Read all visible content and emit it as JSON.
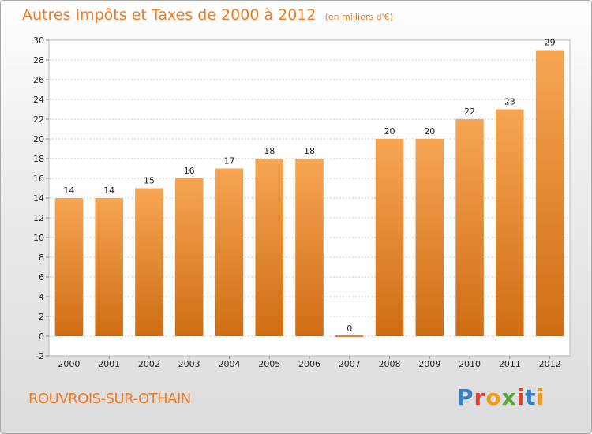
{
  "title": {
    "main": "Autres Impôts et Taxes de 2000 à 2012",
    "unit": "(en milliers d'€)"
  },
  "commune": "ROUVROIS-SUR-OTHAIN",
  "logo": {
    "text": "Proxiti",
    "letter_colors": [
      "#3b7fc4",
      "#e63c2f",
      "#f29a1d",
      "#5aa83a",
      "#e63c2f",
      "#3b7fc4",
      "#f29a1d"
    ]
  },
  "colors": {
    "bar_light": "#f7a553",
    "bar_dark": "#cf6d14",
    "accent": "#ef7b24",
    "grid": "#cccccc"
  },
  "chart_data": {
    "type": "bar",
    "categories": [
      "2000",
      "2001",
      "2002",
      "2003",
      "2004",
      "2005",
      "2006",
      "2007",
      "2008",
      "2009",
      "2010",
      "2011",
      "2012"
    ],
    "values": [
      14,
      14,
      15,
      16,
      17,
      18,
      18,
      0,
      20,
      20,
      22,
      23,
      29
    ],
    "ylim": [
      -2,
      30
    ],
    "yticks": [
      -2,
      0,
      2,
      4,
      6,
      8,
      10,
      12,
      14,
      16,
      18,
      20,
      22,
      24,
      26,
      28,
      30
    ],
    "grid": true,
    "data_labels": true
  }
}
